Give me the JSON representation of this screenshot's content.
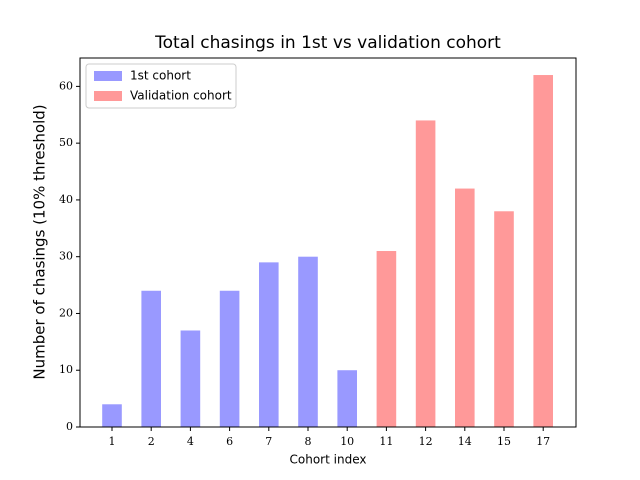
{
  "chart_data": {
    "type": "bar",
    "title": "Total chasings in 1st vs validation cohort",
    "xlabel": "Cohort index",
    "ylabel": "Number of chasings (10% threshold)",
    "categories": [
      "1",
      "2",
      "4",
      "6",
      "7",
      "8",
      "10",
      "11",
      "12",
      "14",
      "15",
      "17"
    ],
    "series": [
      {
        "name": "1st cohort",
        "color": "#9999ff",
        "values": [
          4,
          24,
          17,
          24,
          29,
          30,
          10,
          null,
          null,
          null,
          null,
          null
        ]
      },
      {
        "name": "Validation cohort",
        "color": "#ff9999",
        "values": [
          null,
          null,
          null,
          null,
          null,
          null,
          null,
          31,
          54,
          42,
          38,
          62
        ]
      }
    ],
    "ylim": [
      0,
      65
    ],
    "yticks": [
      0,
      10,
      20,
      30,
      40,
      50,
      60
    ],
    "grid": false,
    "legend": "upper left"
  }
}
